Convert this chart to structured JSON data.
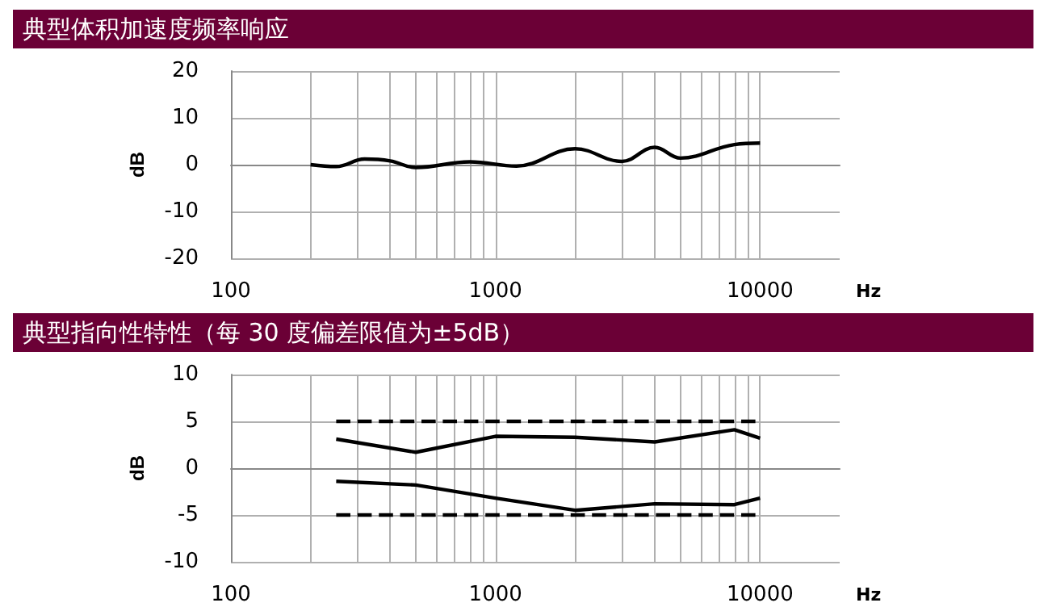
{
  "chart_data": [
    {
      "type": "line",
      "title": "典型体积加速度频率响应",
      "xlabel": "Hz",
      "ylabel": "dB",
      "log": "x",
      "grid": true,
      "marker": "none",
      "line_style": "solid",
      "xlim": [
        100,
        20000
      ],
      "xticks": [
        100,
        {
          "value": 200,
          "label": null
        },
        {
          "value": 300,
          "label": null
        },
        {
          "value": 400,
          "label": null
        },
        {
          "value": 500,
          "label": null
        },
        {
          "value": 600,
          "label": null
        },
        {
          "value": 700,
          "label": null
        },
        {
          "value": 800,
          "label": null
        },
        {
          "value": 900,
          "label": null
        },
        1000,
        {
          "value": 2000,
          "label": null
        },
        {
          "value": 3000,
          "label": null
        },
        {
          "value": 4000,
          "label": null
        },
        {
          "value": 5000,
          "label": null
        },
        {
          "value": 6000,
          "label": null
        },
        {
          "value": 7000,
          "label": null
        },
        {
          "value": 8000,
          "label": null
        },
        {
          "value": 9000,
          "label": null
        },
        10000
      ],
      "ylim": [
        -20,
        20
      ],
      "yticks": [
        -20,
        -10,
        0,
        10,
        20
      ],
      "series": [
        {
          "color": "#000000",
          "x": [
            200,
            250,
            320,
            400,
            500,
            800,
            1200,
            2000,
            3000,
            4000,
            5000,
            8000,
            10000
          ],
          "values": [
            0,
            -0.4,
            1.2,
            0.8,
            -0.6,
            0.6,
            -0.3,
            3.4,
            0.7,
            3.7,
            1.4,
            4.3,
            4.6
          ]
        }
      ]
    },
    {
      "type": "line",
      "title": "典型指向性特性（每 30 度偏差限值为±5dB）",
      "xlabel": "Hz",
      "ylabel": "dB",
      "log": "x",
      "grid": true,
      "marker": "none",
      "xlim": [
        100,
        20000
      ],
      "xticks": [
        100,
        {
          "value": 200,
          "label": null
        },
        {
          "value": 300,
          "label": null
        },
        {
          "value": 400,
          "label": null
        },
        {
          "value": 500,
          "label": null
        },
        {
          "value": 600,
          "label": null
        },
        {
          "value": 700,
          "label": null
        },
        {
          "value": 800,
          "label": null
        },
        {
          "value": 900,
          "label": null
        },
        1000,
        {
          "value": 2000,
          "label": null
        },
        {
          "value": 3000,
          "label": null
        },
        {
          "value": 4000,
          "label": null
        },
        {
          "value": 5000,
          "label": null
        },
        {
          "value": 6000,
          "label": null
        },
        {
          "value": 7000,
          "label": null
        },
        {
          "value": 8000,
          "label": null
        },
        {
          "value": 9000,
          "label": null
        },
        10000
      ],
      "ylim": [
        -10,
        10
      ],
      "yticks": [
        -10,
        -5,
        0,
        5,
        10
      ],
      "series": [
        {
          "color": "#000000",
          "line_style": "dashed",
          "x": [
            250,
            10000
          ],
          "values": [
            5,
            5
          ]
        },
        {
          "color": "#000000",
          "line_style": "solid",
          "x": [
            250,
            500,
            1000,
            2000,
            4000,
            8000,
            10000
          ],
          "values": [
            3.1,
            1.7,
            3.4,
            3.3,
            2.8,
            4.1,
            3.2
          ]
        },
        {
          "color": "#000000",
          "line_style": "solid",
          "x": [
            250,
            500,
            1000,
            2000,
            4000,
            8000,
            10000
          ],
          "values": [
            -1.4,
            -1.8,
            -3.2,
            -4.5,
            -3.8,
            -3.9,
            -3.2
          ]
        },
        {
          "color": "#000000",
          "line_style": "dashed",
          "x": [
            250,
            10000
          ],
          "values": [
            -5,
            -5
          ]
        }
      ]
    }
  ]
}
